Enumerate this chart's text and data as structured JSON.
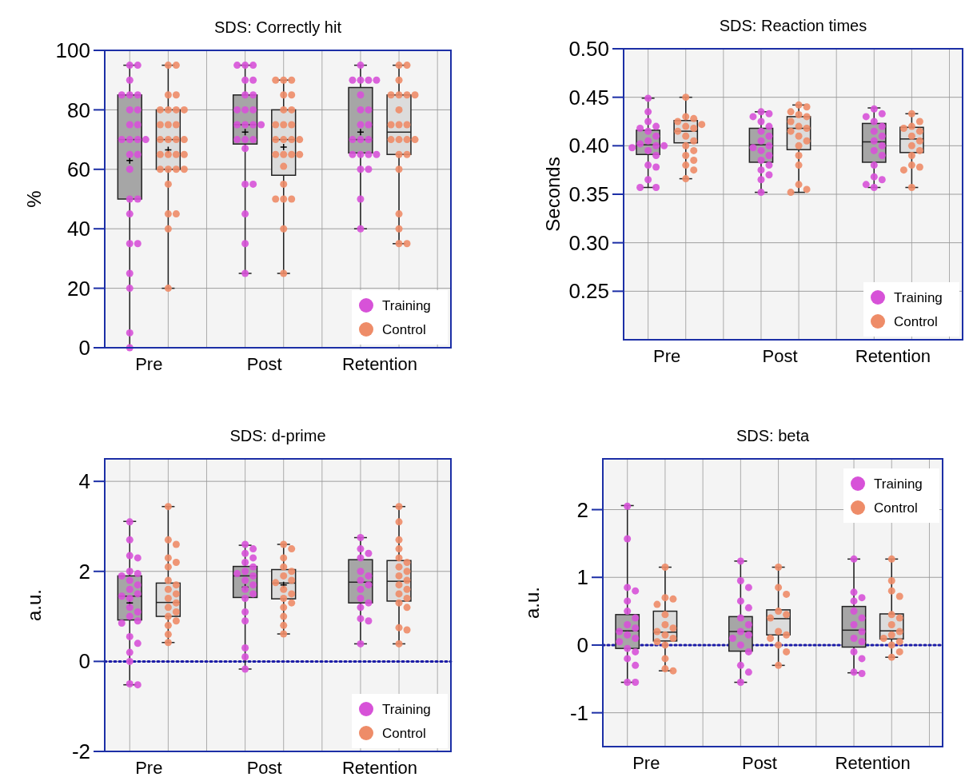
{
  "chart_data": [
    {
      "type": "box",
      "title": "SDS: Correctly hit",
      "ylabel": "%",
      "categories": [
        "Pre",
        "Post",
        "Retention"
      ],
      "ylim": [
        0,
        100
      ],
      "yticks": [
        0,
        20,
        40,
        60,
        80,
        100
      ],
      "grid": true,
      "legend": "bottom right",
      "series": [
        {
          "color": "#a6a6a6",
          "boxes": [
            {
              "low": 0,
              "q1": 50,
              "median": 70,
              "q3": 85,
              "high": 95,
              "mean": 63
            },
            {
              "low": 25,
              "q1": 68.5,
              "median": 75,
              "q3": 85,
              "high": 95,
              "mean": 72.5
            },
            {
              "low": 40,
              "q1": 65.5,
              "median": 70,
              "q3": 87.5,
              "high": 95,
              "mean": 72.5
            }
          ]
        },
        {
          "color": "#dcdcdc",
          "boxes": [
            {
              "low": 20,
              "q1": 60,
              "median": 70,
              "q3": 80,
              "high": 95,
              "mean": 66.5
            },
            {
              "low": 25,
              "q1": 58,
              "median": 70,
              "q3": 80,
              "high": 90,
              "mean": 67.5
            },
            {
              "low": 35,
              "q1": 65,
              "median": 72.5,
              "q3": 85,
              "high": 95
            }
          ]
        },
        {
          "type": "scatter",
          "name": "Training",
          "color": "#d752d8",
          "x": [
            "Pre",
            "Pre",
            "Pre",
            "Pre",
            "Pre",
            "Pre",
            "Pre",
            "Pre",
            "Pre",
            "Pre",
            "Pre",
            "Pre",
            "Pre",
            "Pre",
            "Pre",
            "Pre",
            "Pre",
            "Pre",
            "Pre",
            "Pre",
            "Pre",
            "Pre",
            "Pre",
            "Pre",
            "Pre",
            "Pre",
            "Post",
            "Post",
            "Post",
            "Post",
            "Post",
            "Post",
            "Post",
            "Post",
            "Post",
            "Post",
            "Post",
            "Post",
            "Post",
            "Post",
            "Post",
            "Post",
            "Post",
            "Post",
            "Post",
            "Post",
            "Post",
            "Post",
            "Post",
            "Retention",
            "Retention",
            "Retention",
            "Retention",
            "Retention",
            "Retention",
            "Retention",
            "Retention",
            "Retention",
            "Retention",
            "Retention",
            "Retention",
            "Retention",
            "Retention",
            "Retention",
            "Retention",
            "Retention",
            "Retention",
            "Retention",
            "Retention",
            "Retention"
          ],
          "values": [
            95,
            95,
            90,
            85,
            85,
            85,
            80,
            80,
            75,
            75,
            70,
            70,
            70,
            70,
            65,
            65,
            60,
            50,
            50,
            45,
            35,
            35,
            25,
            20,
            5,
            0,
            95,
            95,
            95,
            90,
            90,
            85,
            85,
            80,
            80,
            80,
            75,
            75,
            75,
            75,
            70,
            70,
            70,
            67,
            55,
            55,
            45,
            35,
            25,
            95,
            90,
            90,
            90,
            90,
            85,
            80,
            80,
            75,
            75,
            70,
            70,
            70,
            65,
            65,
            65,
            65,
            60,
            60,
            50,
            40
          ]
        },
        {
          "type": "scatter",
          "name": "Control",
          "color": "#ee8c68",
          "x": [
            "Pre",
            "Pre",
            "Pre",
            "Pre",
            "Pre",
            "Pre",
            "Pre",
            "Pre",
            "Pre",
            "Pre",
            "Pre",
            "Pre",
            "Pre",
            "Pre",
            "Pre",
            "Pre",
            "Pre",
            "Pre",
            "Pre",
            "Pre",
            "Pre",
            "Pre",
            "Pre",
            "Pre",
            "Pre",
            "Pre",
            "Pre",
            "Pre",
            "Post",
            "Post",
            "Post",
            "Post",
            "Post",
            "Post",
            "Post",
            "Post",
            "Post",
            "Post",
            "Post",
            "Post",
            "Post",
            "Post",
            "Post",
            "Post",
            "Post",
            "Post",
            "Post",
            "Post",
            "Post",
            "Post",
            "Post",
            "Post",
            "Post",
            "Retention",
            "Retention",
            "Retention",
            "Retention",
            "Retention",
            "Retention",
            "Retention",
            "Retention",
            "Retention",
            "Retention",
            "Retention",
            "Retention",
            "Retention",
            "Retention",
            "Retention",
            "Retention",
            "Retention",
            "Retention",
            "Retention",
            "Retention",
            "Retention",
            "Retention"
          ],
          "values": [
            95,
            95,
            85,
            85,
            80,
            80,
            80,
            80,
            75,
            75,
            75,
            70,
            70,
            70,
            70,
            65,
            65,
            65,
            65,
            60,
            60,
            60,
            60,
            55,
            45,
            45,
            40,
            20,
            90,
            90,
            90,
            85,
            85,
            80,
            80,
            75,
            75,
            75,
            70,
            70,
            70,
            70,
            65,
            65,
            65,
            65,
            61,
            55,
            50,
            50,
            50,
            40,
            25,
            95,
            95,
            90,
            85,
            85,
            85,
            85,
            80,
            75,
            75,
            75,
            70,
            70,
            70,
            70,
            65,
            65,
            60,
            45,
            40,
            35,
            35
          ]
        }
      ]
    },
    {
      "type": "box",
      "title": "SDS: Reaction times",
      "ylabel": "Seconds",
      "categories": [
        "Pre",
        "Post",
        "Retention"
      ],
      "ylim": [
        0.2,
        0.5
      ],
      "yticks": [
        0.25,
        {
          "value": 0.3,
          "label": "0.30"
        },
        0.35,
        {
          "value": 0.4,
          "label": "0.40"
        },
        0.45,
        {
          "value": 0.5,
          "label": "0.50"
        }
      ],
      "grid": true,
      "legend": "bottom right",
      "series": [
        {
          "color": "#a6a6a6",
          "boxes": [
            {
              "low": 0.357,
              "q1": 0.391,
              "median": 0.401,
              "q3": 0.416,
              "high": 0.449
            },
            {
              "low": 0.352,
              "q1": 0.383,
              "median": 0.401,
              "q3": 0.418,
              "high": 0.435
            },
            {
              "low": 0.357,
              "q1": 0.383,
              "median": 0.404,
              "q3": 0.423,
              "high": 0.439
            }
          ]
        },
        {
          "color": "#dcdcdc",
          "boxes": [
            {
              "low": 0.366,
              "q1": 0.403,
              "median": 0.415,
              "q3": 0.426,
              "high": 0.45
            },
            {
              "low": 0.352,
              "q1": 0.396,
              "median": 0.418,
              "q3": 0.43,
              "high": 0.442
            },
            {
              "low": 0.357,
              "q1": 0.393,
              "median": 0.407,
              "q3": 0.419,
              "high": 0.433
            }
          ]
        },
        {
          "type": "scatter",
          "name": "Training",
          "color": "#d752d8",
          "x": [
            "Pre",
            "Pre",
            "Pre",
            "Pre",
            "Pre",
            "Pre",
            "Pre",
            "Pre",
            "Pre",
            "Pre",
            "Pre",
            "Pre",
            "Pre",
            "Pre",
            "Pre",
            "Pre",
            "Pre",
            "Pre",
            "Pre",
            "Post",
            "Post",
            "Post",
            "Post",
            "Post",
            "Post",
            "Post",
            "Post",
            "Post",
            "Post",
            "Post",
            "Post",
            "Post",
            "Post",
            "Post",
            "Post",
            "Post",
            "Post",
            "Retention",
            "Retention",
            "Retention",
            "Retention",
            "Retention",
            "Retention",
            "Retention",
            "Retention",
            "Retention",
            "Retention",
            "Retention",
            "Retention",
            "Retention",
            "Retention",
            "Retention",
            "Retention"
          ],
          "values": [
            0.449,
            0.435,
            0.425,
            0.42,
            0.418,
            0.415,
            0.41,
            0.405,
            0.402,
            0.4,
            0.4,
            0.398,
            0.395,
            0.39,
            0.38,
            0.378,
            0.365,
            0.357,
            0.357,
            0.435,
            0.433,
            0.43,
            0.425,
            0.42,
            0.415,
            0.41,
            0.405,
            0.4,
            0.398,
            0.395,
            0.39,
            0.385,
            0.38,
            0.375,
            0.37,
            0.365,
            0.352,
            0.438,
            0.433,
            0.43,
            0.425,
            0.42,
            0.415,
            0.41,
            0.405,
            0.4,
            0.395,
            0.39,
            0.38,
            0.368,
            0.365,
            0.36,
            0.357
          ]
        },
        {
          "type": "scatter",
          "name": "Control",
          "color": "#ee8c68",
          "x": [
            "Pre",
            "Pre",
            "Pre",
            "Pre",
            "Pre",
            "Pre",
            "Pre",
            "Pre",
            "Pre",
            "Pre",
            "Pre",
            "Pre",
            "Pre",
            "Pre",
            "Pre",
            "Pre",
            "Pre",
            "Post",
            "Post",
            "Post",
            "Post",
            "Post",
            "Post",
            "Post",
            "Post",
            "Post",
            "Post",
            "Post",
            "Post",
            "Post",
            "Post",
            "Post",
            "Post",
            "Post",
            "Retention",
            "Retention",
            "Retention",
            "Retention",
            "Retention",
            "Retention",
            "Retention",
            "Retention",
            "Retention",
            "Retention",
            "Retention",
            "Retention",
            "Retention",
            "Retention"
          ],
          "values": [
            0.45,
            0.43,
            0.428,
            0.425,
            0.422,
            0.42,
            0.418,
            0.415,
            0.41,
            0.405,
            0.4,
            0.395,
            0.39,
            0.385,
            0.38,
            0.375,
            0.366,
            0.442,
            0.44,
            0.435,
            0.432,
            0.43,
            0.425,
            0.42,
            0.418,
            0.415,
            0.41,
            0.405,
            0.4,
            0.39,
            0.38,
            0.36,
            0.355,
            0.352,
            0.433,
            0.425,
            0.42,
            0.418,
            0.415,
            0.41,
            0.405,
            0.4,
            0.395,
            0.39,
            0.38,
            0.378,
            0.375,
            0.357
          ]
        }
      ]
    },
    {
      "type": "box",
      "title": "SDS: d-prime",
      "ylabel": "a.u.",
      "categories": [
        "Pre",
        "Post",
        "Retention"
      ],
      "ylim": [
        -2,
        4.5
      ],
      "yticks": [
        -2,
        0,
        2,
        4
      ],
      "grid": true,
      "legend": "bottom right",
      "ref_lines": [
        {
          "axis": "y",
          "value": 0,
          "color": "#1a1aa8",
          "line_style": "dotted"
        }
      ],
      "series": [
        {
          "color": "#a6a6a6",
          "boxes": [
            {
              "low": -0.52,
              "q1": 0.92,
              "median": 1.45,
              "q3": 1.9,
              "high": 3.11,
              "mean": 1.3
            },
            {
              "low": -0.17,
              "q1": 1.42,
              "median": 1.9,
              "q3": 2.11,
              "high": 2.58,
              "mean": 1.65
            },
            {
              "low": 0.39,
              "q1": 1.3,
              "median": 1.76,
              "q3": 2.26,
              "high": 2.75
            }
          ]
        },
        {
          "color": "#dcdcdc",
          "boxes": [
            {
              "low": 0.42,
              "q1": 1.0,
              "median": 1.31,
              "q3": 1.74,
              "high": 3.44
            },
            {
              "low": 0.61,
              "q1": 1.39,
              "median": 1.74,
              "q3": 2.04,
              "high": 2.6,
              "mean": 1.7
            },
            {
              "low": 0.39,
              "q1": 1.34,
              "median": 1.78,
              "q3": 2.24,
              "high": 3.44
            }
          ]
        },
        {
          "type": "scatter",
          "name": "Training",
          "color": "#d752d8",
          "x": [
            "Pre",
            "Pre",
            "Pre",
            "Pre",
            "Pre",
            "Pre",
            "Pre",
            "Pre",
            "Pre",
            "Pre",
            "Pre",
            "Pre",
            "Pre",
            "Pre",
            "Pre",
            "Pre",
            "Pre",
            "Pre",
            "Pre",
            "Pre",
            "Pre",
            "Pre",
            "Pre",
            "Pre",
            "Post",
            "Post",
            "Post",
            "Post",
            "Post",
            "Post",
            "Post",
            "Post",
            "Post",
            "Post",
            "Post",
            "Post",
            "Post",
            "Post",
            "Post",
            "Post",
            "Post",
            "Post",
            "Post",
            "Retention",
            "Retention",
            "Retention",
            "Retention",
            "Retention",
            "Retention",
            "Retention",
            "Retention",
            "Retention",
            "Retention",
            "Retention",
            "Retention",
            "Retention",
            "Retention",
            "Retention"
          ],
          "values": [
            3.1,
            2.7,
            2.35,
            2.3,
            2.0,
            1.95,
            1.9,
            1.8,
            1.7,
            1.6,
            1.5,
            1.45,
            1.4,
            1.2,
            1.1,
            1.0,
            0.9,
            0.85,
            0.55,
            0.4,
            0.2,
            0.0,
            -0.5,
            -0.52,
            2.6,
            2.5,
            2.4,
            2.3,
            2.2,
            2.1,
            2.0,
            1.95,
            1.9,
            1.8,
            1.7,
            1.6,
            1.5,
            1.4,
            1.1,
            0.9,
            0.3,
            0.1,
            -0.17,
            2.75,
            2.5,
            2.4,
            2.3,
            2.0,
            1.9,
            1.8,
            1.7,
            1.6,
            1.4,
            1.3,
            1.2,
            0.95,
            0.9,
            0.39
          ]
        },
        {
          "type": "scatter",
          "name": "Control",
          "color": "#ee8c68",
          "x": [
            "Pre",
            "Pre",
            "Pre",
            "Pre",
            "Pre",
            "Pre",
            "Pre",
            "Pre",
            "Pre",
            "Pre",
            "Pre",
            "Pre",
            "Pre",
            "Pre",
            "Pre",
            "Pre",
            "Pre",
            "Pre",
            "Pre",
            "Post",
            "Post",
            "Post",
            "Post",
            "Post",
            "Post",
            "Post",
            "Post",
            "Post",
            "Post",
            "Post",
            "Post",
            "Post",
            "Post",
            "Post",
            "Post",
            "Retention",
            "Retention",
            "Retention",
            "Retention",
            "Retention",
            "Retention",
            "Retention",
            "Retention",
            "Retention",
            "Retention",
            "Retention",
            "Retention",
            "Retention",
            "Retention",
            "Retention",
            "Retention",
            "Retention",
            "Retention",
            "Retention"
          ],
          "values": [
            3.44,
            2.7,
            2.6,
            2.3,
            2.2,
            2.1,
            1.8,
            1.7,
            1.6,
            1.5,
            1.4,
            1.3,
            1.2,
            1.1,
            1.0,
            0.9,
            0.8,
            0.6,
            0.42,
            2.6,
            2.5,
            2.3,
            2.1,
            2.0,
            1.9,
            1.8,
            1.75,
            1.6,
            1.5,
            1.4,
            1.3,
            1.2,
            1.0,
            0.8,
            0.61,
            3.44,
            3.1,
            2.7,
            2.5,
            2.3,
            2.2,
            2.1,
            2.0,
            1.9,
            1.8,
            1.7,
            1.6,
            1.5,
            1.4,
            1.3,
            1.2,
            0.75,
            0.7,
            0.39
          ]
        }
      ]
    },
    {
      "type": "box",
      "title": "SDS: beta",
      "ylabel": "a.u.",
      "categories": [
        "Pre",
        "Post",
        "Retention"
      ],
      "ylim": [
        -1.5,
        2.75
      ],
      "yticks": [
        -1,
        0,
        1,
        2
      ],
      "grid": true,
      "legend": "top right",
      "ref_lines": [
        {
          "axis": "y",
          "value": 0,
          "color": "#1a1aa8",
          "line_style": "dotted"
        }
      ],
      "series": [
        {
          "color": "#a6a6a6",
          "boxes": [
            {
              "low": -0.55,
              "q1": -0.05,
              "median": 0.21,
              "q3": 0.45,
              "high": 2.06
            },
            {
              "low": -0.55,
              "q1": -0.09,
              "median": 0.2,
              "q3": 0.42,
              "high": 1.24
            },
            {
              "low": -0.41,
              "q1": -0.03,
              "median": 0.22,
              "q3": 0.57,
              "high": 1.27
            }
          ]
        },
        {
          "color": "#dcdcdc",
          "boxes": [
            {
              "low": -0.38,
              "q1": 0.06,
              "median": 0.19,
              "q3": 0.5,
              "high": 1.15
            },
            {
              "low": -0.3,
              "q1": 0.15,
              "median": 0.39,
              "q3": 0.52,
              "high": 1.15
            },
            {
              "low": -0.18,
              "q1": 0.09,
              "median": 0.21,
              "q3": 0.46,
              "high": 1.27
            }
          ]
        },
        {
          "type": "scatter",
          "name": "Training",
          "color": "#d752d8",
          "x": [
            "Pre",
            "Pre",
            "Pre",
            "Pre",
            "Pre",
            "Pre",
            "Pre",
            "Pre",
            "Pre",
            "Pre",
            "Pre",
            "Pre",
            "Pre",
            "Pre",
            "Pre",
            "Pre",
            "Pre",
            "Pre",
            "Pre",
            "Post",
            "Post",
            "Post",
            "Post",
            "Post",
            "Post",
            "Post",
            "Post",
            "Post",
            "Post",
            "Post",
            "Post",
            "Post",
            "Post",
            "Post",
            "Retention",
            "Retention",
            "Retention",
            "Retention",
            "Retention",
            "Retention",
            "Retention",
            "Retention",
            "Retention",
            "Retention",
            "Retention",
            "Retention",
            "Retention",
            "Retention"
          ],
          "values": [
            2.05,
            1.57,
            0.85,
            0.8,
            0.65,
            0.5,
            0.4,
            0.3,
            0.25,
            0.2,
            0.15,
            0.1,
            0.05,
            -0.05,
            -0.1,
            -0.2,
            -0.3,
            -0.55,
            -0.55,
            1.24,
            0.95,
            0.85,
            0.65,
            0.55,
            0.4,
            0.3,
            0.2,
            0.15,
            0.1,
            0.0,
            -0.1,
            -0.3,
            -0.4,
            -0.55,
            1.27,
            0.78,
            0.7,
            0.65,
            0.5,
            0.4,
            0.3,
            0.2,
            0.1,
            0.05,
            -0.1,
            -0.2,
            -0.4,
            -0.42
          ]
        },
        {
          "type": "scatter",
          "name": "Control",
          "color": "#ee8c68",
          "x": [
            "Pre",
            "Pre",
            "Pre",
            "Pre",
            "Pre",
            "Pre",
            "Pre",
            "Pre",
            "Pre",
            "Pre",
            "Pre",
            "Pre",
            "Pre",
            "Pre",
            "Pre",
            "Post",
            "Post",
            "Post",
            "Post",
            "Post",
            "Post",
            "Post",
            "Post",
            "Post",
            "Post",
            "Post",
            "Post",
            "Retention",
            "Retention",
            "Retention",
            "Retention",
            "Retention",
            "Retention",
            "Retention",
            "Retention",
            "Retention",
            "Retention",
            "Retention",
            "Retention",
            "Retention",
            "Retention"
          ],
          "values": [
            1.15,
            0.7,
            0.68,
            0.6,
            0.45,
            0.3,
            0.25,
            0.2,
            0.15,
            0.1,
            0.05,
            0.0,
            -0.2,
            -0.35,
            -0.38,
            1.15,
            0.85,
            0.75,
            0.5,
            0.45,
            0.4,
            0.2,
            0.15,
            0.1,
            0.0,
            -0.1,
            -0.3,
            1.27,
            0.95,
            0.8,
            0.72,
            0.45,
            0.4,
            0.3,
            0.2,
            0.15,
            0.1,
            0.05,
            0.0,
            -0.1,
            -0.18
          ]
        }
      ]
    }
  ]
}
